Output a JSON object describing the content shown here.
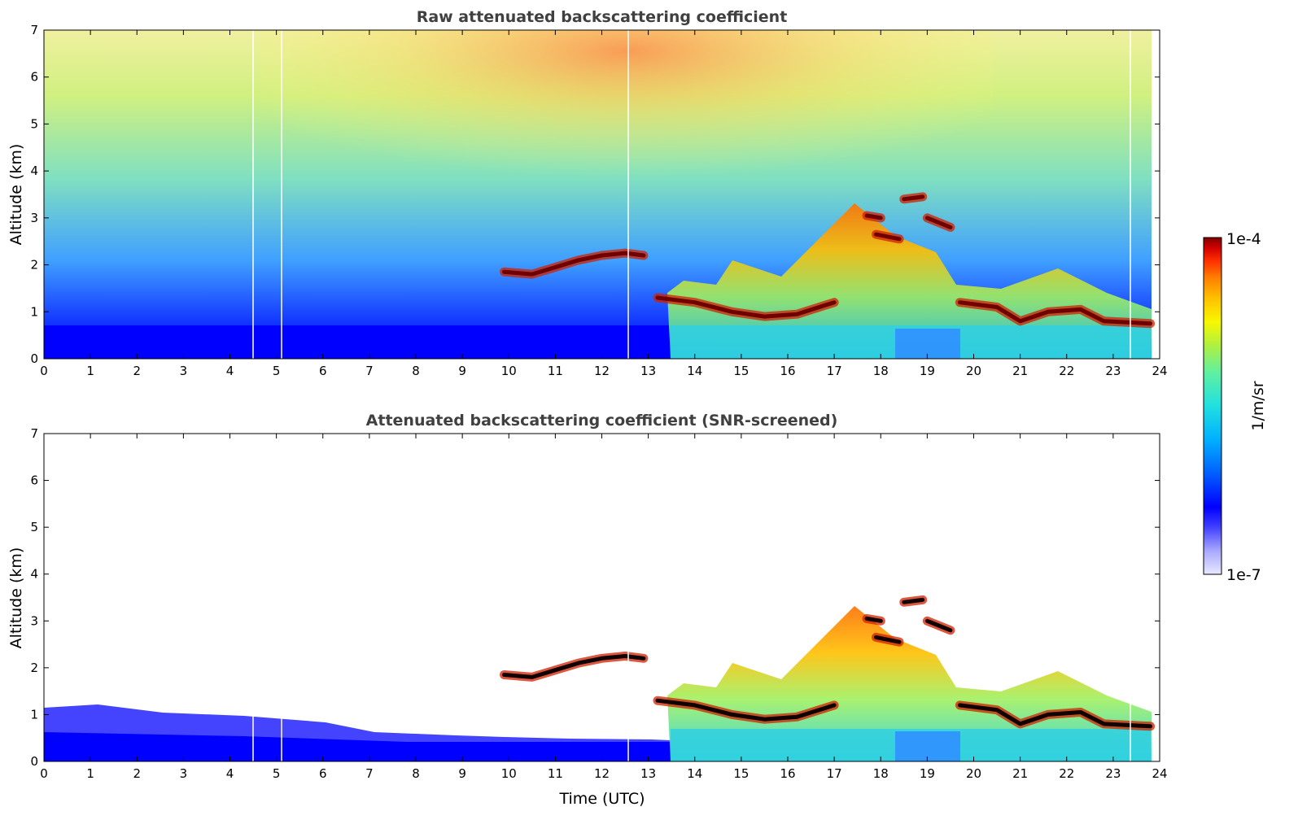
{
  "chart_data": [
    {
      "type": "heatmap",
      "title": "Raw attenuated backscattering coefficient",
      "xlabel": "",
      "ylabel": "Altitude (km)",
      "xlim": [
        0,
        24
      ],
      "ylim": [
        0,
        7
      ],
      "x_ticks": [
        "0",
        "1",
        "2",
        "3",
        "4",
        "5",
        "6",
        "7",
        "8",
        "9",
        "10",
        "11",
        "12",
        "13",
        "14",
        "15",
        "16",
        "17",
        "18",
        "19",
        "20",
        "21",
        "22",
        "23",
        "24"
      ],
      "y_ticks": [
        "0",
        "1",
        "2",
        "3",
        "4",
        "5",
        "6",
        "7"
      ],
      "features": [
        {
          "kind": "layer",
          "points": [
            [
              9.9,
              1.85
            ],
            [
              10.5,
              1.8
            ],
            [
              11.0,
              1.95
            ],
            [
              11.5,
              2.1
            ],
            [
              12.0,
              2.2
            ],
            [
              12.5,
              2.25
            ],
            [
              12.9,
              2.2
            ]
          ]
        },
        {
          "kind": "layer",
          "points": [
            [
              13.2,
              1.3
            ],
            [
              14.0,
              1.2
            ],
            [
              14.8,
              1.0
            ],
            [
              15.5,
              0.9
            ],
            [
              16.2,
              0.95
            ],
            [
              17.0,
              1.2
            ]
          ]
        },
        {
          "kind": "layer",
          "points": [
            [
              17.7,
              3.05
            ],
            [
              18.0,
              3.0
            ]
          ]
        },
        {
          "kind": "layer",
          "points": [
            [
              17.9,
              2.65
            ],
            [
              18.4,
              2.55
            ]
          ]
        },
        {
          "kind": "layer",
          "points": [
            [
              18.5,
              3.4
            ],
            [
              18.9,
              3.45
            ]
          ]
        },
        {
          "kind": "layer",
          "points": [
            [
              19.0,
              3.0
            ],
            [
              19.5,
              2.8
            ]
          ]
        },
        {
          "kind": "layer",
          "points": [
            [
              19.7,
              1.2
            ],
            [
              20.5,
              1.1
            ],
            [
              21.0,
              0.8
            ],
            [
              21.6,
              1.0
            ],
            [
              22.3,
              1.05
            ],
            [
              22.8,
              0.8
            ],
            [
              23.8,
              0.75
            ]
          ]
        }
      ]
    },
    {
      "type": "heatmap",
      "title": "Attenuated backscattering coefficient (SNR-screened)",
      "xlabel": "Time (UTC)",
      "ylabel": "Altitude (km)",
      "xlim": [
        0,
        24
      ],
      "ylim": [
        0,
        7
      ],
      "x_ticks": [
        "0",
        "1",
        "2",
        "3",
        "4",
        "5",
        "6",
        "7",
        "8",
        "9",
        "10",
        "11",
        "12",
        "13",
        "14",
        "15",
        "16",
        "17",
        "18",
        "19",
        "20",
        "21",
        "22",
        "23",
        "24"
      ],
      "y_ticks": [
        "0",
        "1",
        "2",
        "3",
        "4",
        "5",
        "6",
        "7"
      ],
      "features": [
        {
          "kind": "layer",
          "points": [
            [
              9.9,
              1.85
            ],
            [
              10.5,
              1.8
            ],
            [
              11.0,
              1.95
            ],
            [
              11.5,
              2.1
            ],
            [
              12.0,
              2.2
            ],
            [
              12.5,
              2.25
            ],
            [
              12.9,
              2.2
            ]
          ]
        },
        {
          "kind": "layer",
          "points": [
            [
              13.2,
              1.3
            ],
            [
              14.0,
              1.2
            ],
            [
              14.8,
              1.0
            ],
            [
              15.5,
              0.9
            ],
            [
              16.2,
              0.95
            ],
            [
              17.0,
              1.2
            ]
          ]
        },
        {
          "kind": "layer",
          "points": [
            [
              17.7,
              3.05
            ],
            [
              18.0,
              3.0
            ]
          ]
        },
        {
          "kind": "layer",
          "points": [
            [
              17.9,
              2.65
            ],
            [
              18.4,
              2.55
            ]
          ]
        },
        {
          "kind": "layer",
          "points": [
            [
              18.5,
              3.4
            ],
            [
              18.9,
              3.45
            ]
          ]
        },
        {
          "kind": "layer",
          "points": [
            [
              19.0,
              3.0
            ],
            [
              19.5,
              2.8
            ]
          ]
        },
        {
          "kind": "layer",
          "points": [
            [
              19.7,
              1.2
            ],
            [
              20.5,
              1.1
            ],
            [
              21.0,
              0.8
            ],
            [
              21.6,
              1.0
            ],
            [
              22.3,
              1.05
            ],
            [
              22.8,
              0.8
            ],
            [
              23.8,
              0.75
            ]
          ]
        }
      ]
    }
  ],
  "colorbar": {
    "max_label": "1e-4",
    "min_label": "1e-7",
    "unit_label": "1/m/sr",
    "colors": [
      "#e8e8ff",
      "#a8a8ff",
      "#5a5aff",
      "#0000ff",
      "#0060ff",
      "#00b0ff",
      "#20e0e0",
      "#60f0a0",
      "#b0f040",
      "#f8f800",
      "#ffc000",
      "#ff8000",
      "#ff3000",
      "#d00000",
      "#800000"
    ]
  }
}
